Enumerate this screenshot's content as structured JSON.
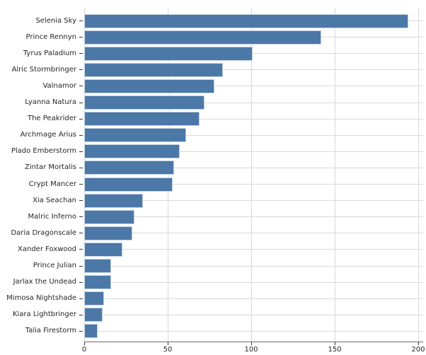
{
  "chart_data": {
    "type": "bar",
    "orientation": "horizontal",
    "title": "",
    "xlabel": "",
    "ylabel": "",
    "categories": [
      "Selenia Sky",
      "Prince Rennyn",
      "Tyrus Paladium",
      "Alric Stormbringer",
      "Valnamor",
      "Lyanna Natura",
      "The Peakrider",
      "Archmage Arius",
      "Plado Emberstorm",
      "Zintar Mortalis",
      "Crypt Mancer",
      "Xia Seachan",
      "Malric Inferno",
      "Daria Dragonscale",
      "Xander Foxwood",
      "Prince Julian",
      "Jarlax the Undead",
      "Mimosa Nightshade",
      "Kiara Lightbringer",
      "Talia Firestorm"
    ],
    "values": [
      194,
      142,
      101,
      83,
      78,
      72,
      69,
      61,
      57,
      54,
      53,
      35,
      30,
      29,
      23,
      16,
      16,
      12,
      11,
      8
    ],
    "xlim": [
      0,
      200
    ],
    "xticks": [
      0,
      50,
      100,
      150,
      200
    ],
    "grid": true,
    "legend": null,
    "colors": {
      "bar_fill": "#4c78a8",
      "bar_edge": "#c3d2e2",
      "grid": "#d8d8d8",
      "axis_line": "#6b6b6b",
      "tick_mark": "#333333",
      "text": "#262626",
      "background": "#ffffff"
    }
  }
}
